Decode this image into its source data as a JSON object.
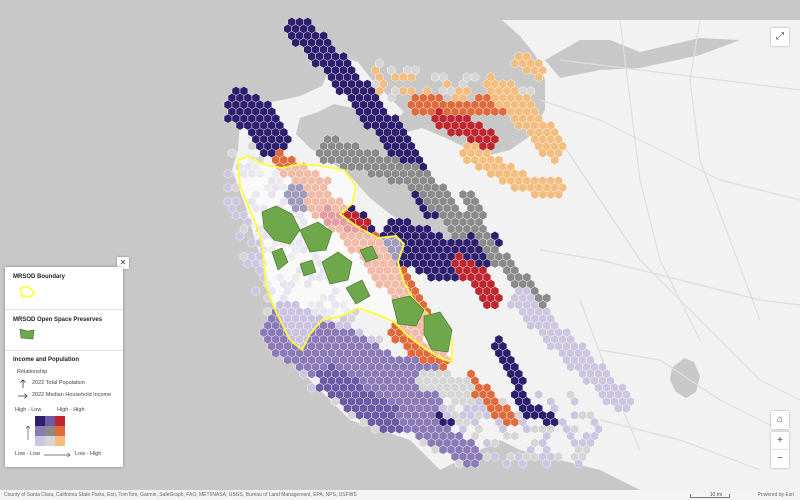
{
  "map": {
    "colors": {
      "water": "#c8c8c8",
      "land": "#f2f2f2",
      "road": "#dedede",
      "boundary": "#ffff3d",
      "preserve": "#6fa84b"
    },
    "hex_palette": {
      "high_low": "#2e1f6e",
      "high_mid": "#6b5aa6",
      "high_high": "#c0262f",
      "mid_low": "#8a7ab8",
      "mid_mid": "#8a8a8a",
      "mid_high": "#e06a3c",
      "low_low": "#cdc6e0",
      "low_mid": "#d6d6d6",
      "low_high": "#f2bd7e"
    }
  },
  "legend": {
    "boundary_title": "MRSOD Boundary",
    "preserves_title": "MRSOD Open Space Preserves",
    "income_title": "Income and Population",
    "relationship_label": "Relationship",
    "arrow_up_label": "2022 Total Population",
    "arrow_right_label": "2022 Median Household Income",
    "high_low": "High - Low",
    "high_high": "High - High",
    "low_low": "Low - Low",
    "low_high": "Low - High",
    "close_icon": "✕"
  },
  "controls": {
    "expand_icon": "⤢",
    "home_icon": "⌂",
    "zoom_in": "+",
    "zoom_out": "−"
  },
  "attribution": {
    "sources": "County of Santa Clara, California State Parks, Esri, TomTom, Garmin, SafeGraph, FAO, METI/NASA, USGS, Bureau of Land Management, EPA, NPS, USFWS",
    "powered_by": "Powered by Esri",
    "scale_label": "10 mi"
  }
}
